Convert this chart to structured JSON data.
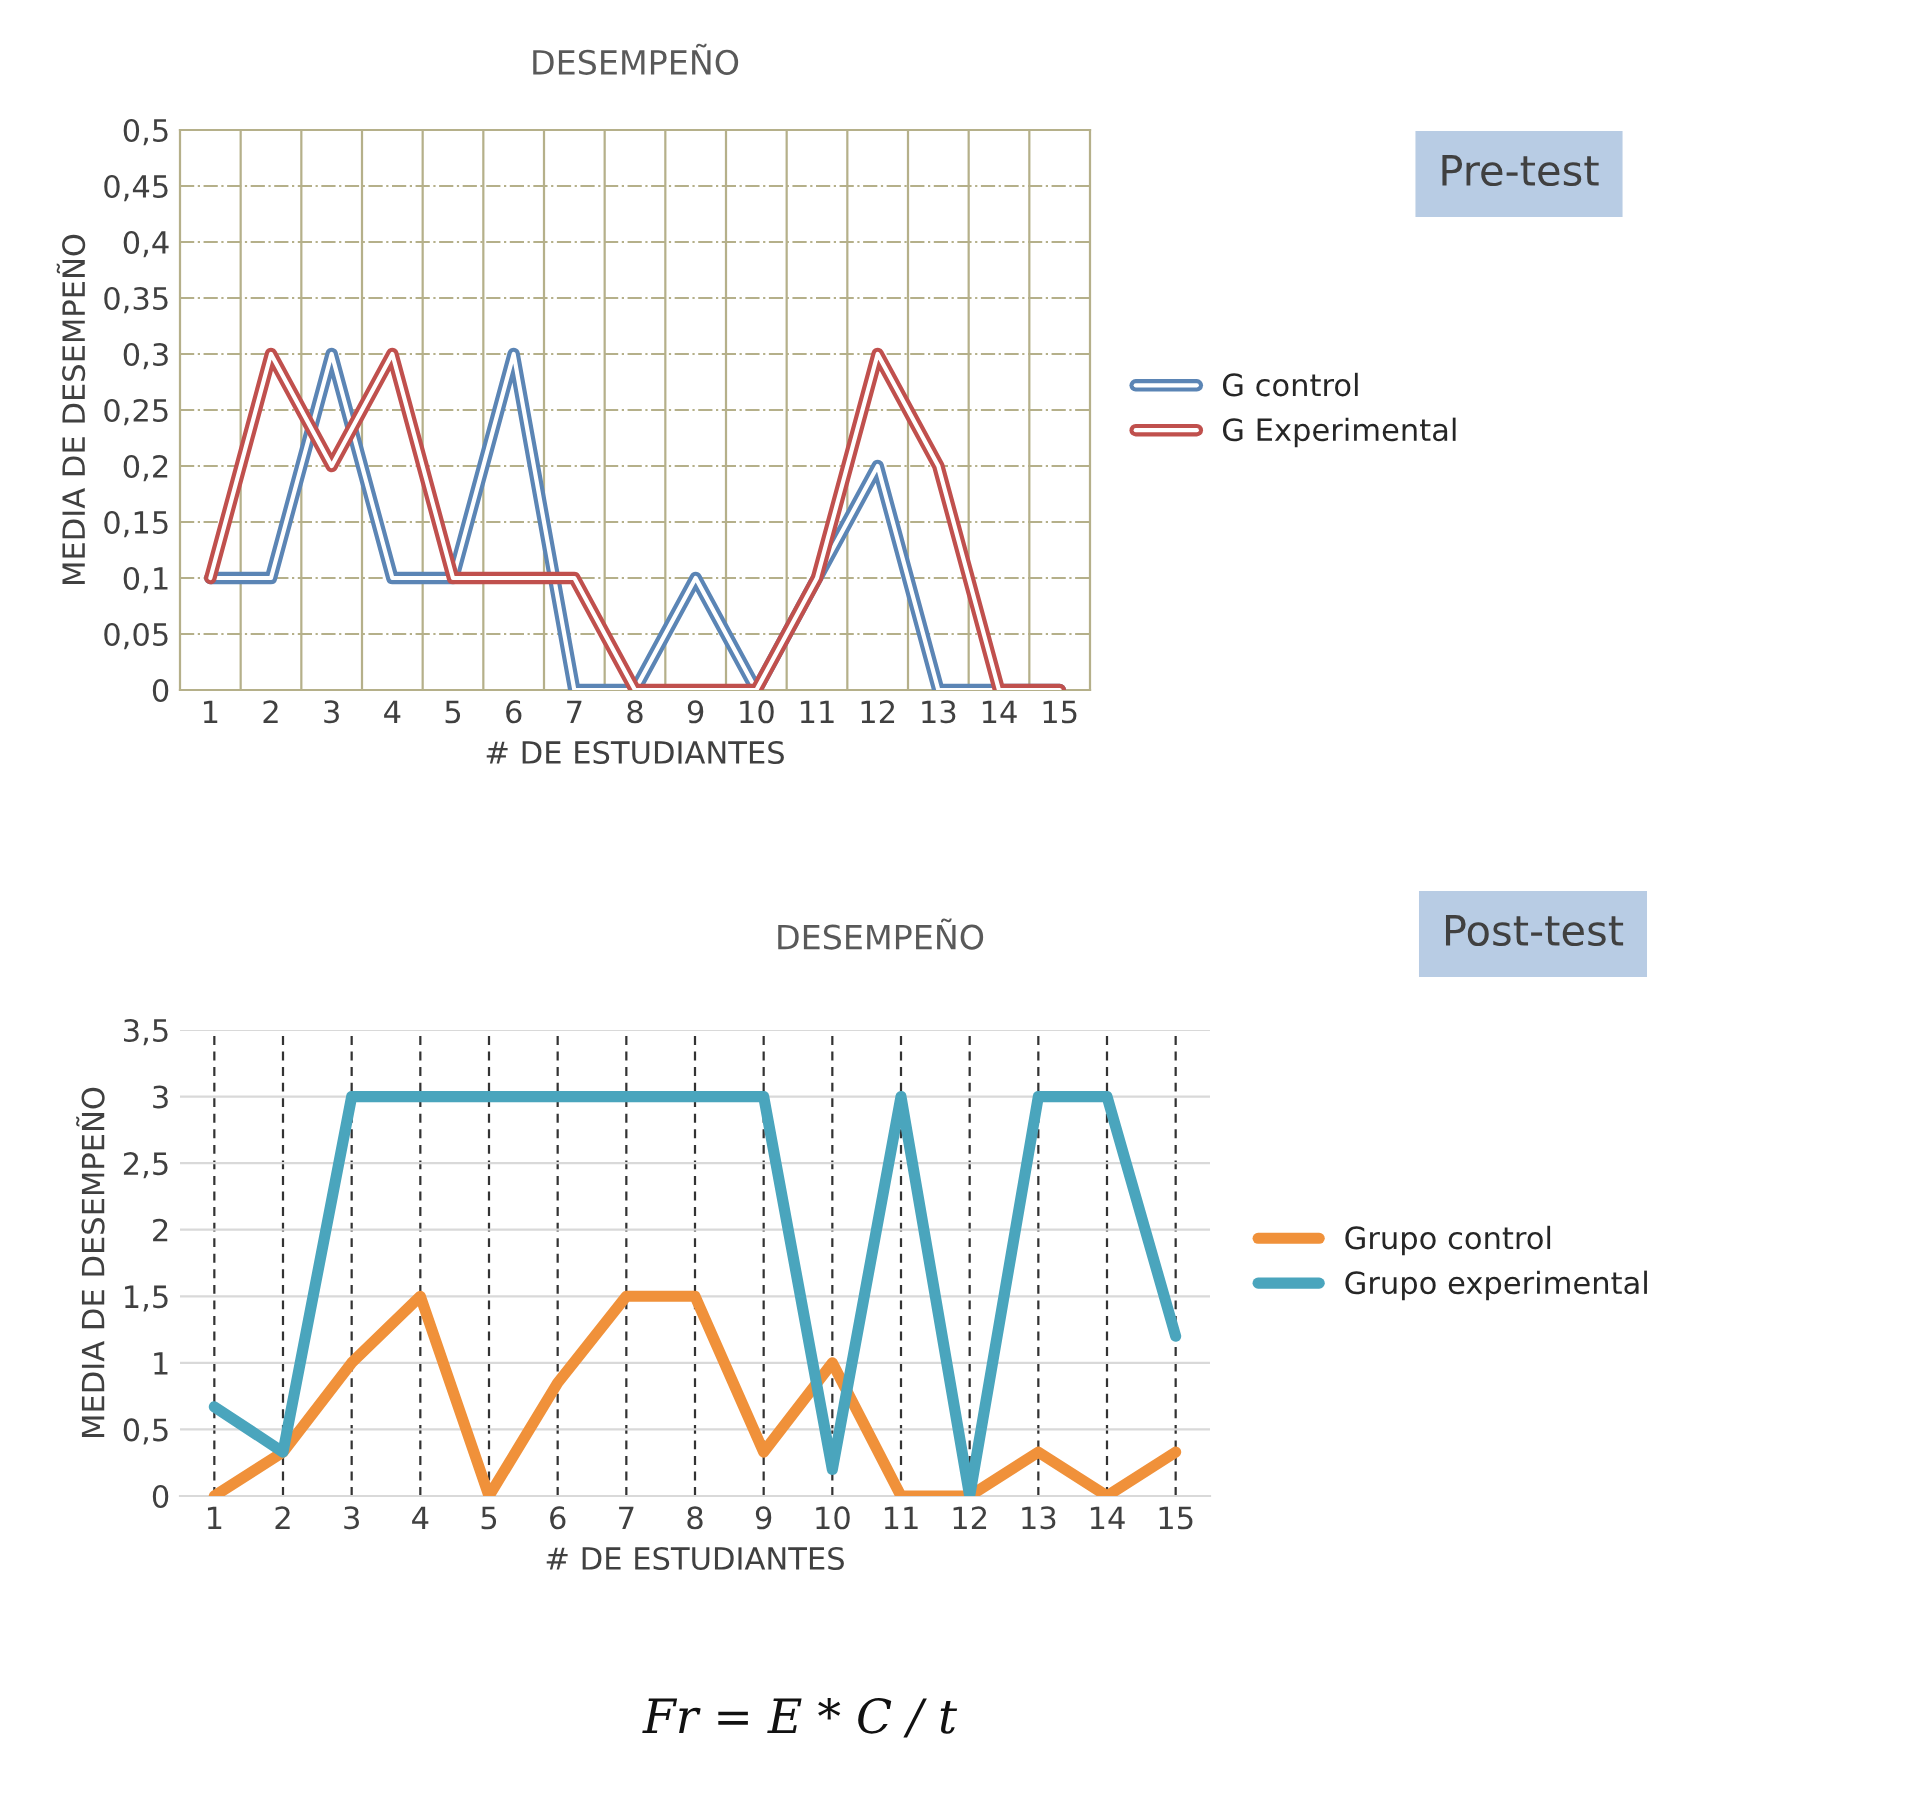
{
  "chart_data": [
    {
      "type": "line",
      "title": "DESEMPEÑO",
      "xlabel": "# DE ESTUDIANTES",
      "ylabel": "MEDIA DE DESEMPEÑO",
      "categories": [
        "1",
        "2",
        "3",
        "4",
        "5",
        "6",
        "7",
        "8",
        "9",
        "10",
        "11",
        "12",
        "13",
        "14",
        "15"
      ],
      "series": [
        {
          "name": "G control",
          "color": "#5b85b5",
          "values": [
            0.1,
            0.1,
            0.3,
            0.1,
            0.1,
            0.3,
            0,
            0,
            0.1,
            0,
            0.1,
            0.2,
            0,
            0,
            0
          ]
        },
        {
          "name": "G Experimental",
          "color": "#c0504d",
          "values": [
            0.1,
            0.3,
            0.2,
            0.3,
            0.1,
            0.1,
            0.1,
            0,
            0,
            0,
            0.1,
            0.3,
            0.2,
            0,
            0
          ]
        }
      ],
      "ylim": [
        0,
        0.5
      ],
      "yticks": [
        0,
        {
          "value": 0.05,
          "label": "0,05"
        },
        {
          "value": 0.1,
          "label": "0,1"
        },
        {
          "value": 0.15,
          "label": "0,15"
        },
        {
          "value": 0.2,
          "label": "0,2"
        },
        {
          "value": 0.25,
          "label": "0,25"
        },
        {
          "value": 0.3,
          "label": "0,3"
        },
        {
          "value": 0.35,
          "label": "0,35"
        },
        {
          "value": 0.4,
          "label": "0,4"
        },
        {
          "value": 0.45,
          "label": "0,45"
        },
        {
          "value": 0.5,
          "label": "0,5"
        }
      ],
      "grid": true,
      "legend": "right",
      "line_style": "solid",
      "marker": "none",
      "annotations": [
        "Pre-test"
      ]
    },
    {
      "type": "line",
      "title": "DESEMPEÑO",
      "xlabel": "# DE ESTUDIANTES",
      "ylabel": "MEDIA DE DESEMPEÑO",
      "categories": [
        "1",
        "2",
        "3",
        "4",
        "5",
        "6",
        "7",
        "8",
        "9",
        "10",
        "11",
        "12",
        "13",
        "14",
        "15"
      ],
      "series": [
        {
          "name": "Grupo control",
          "color": "#f0913a",
          "values": [
            0,
            0.33,
            1,
            1.5,
            0,
            0.85,
            1.5,
            1.5,
            0.33,
            1,
            0,
            0,
            0.33,
            0,
            0.33
          ]
        },
        {
          "name": "Grupo experimental",
          "color": "#4aa5bd",
          "values": [
            0.67,
            0.33,
            3,
            3,
            3,
            3,
            3,
            3,
            3,
            0.2,
            3,
            0,
            3,
            3,
            1.2
          ]
        }
      ],
      "ylim": [
        0,
        3.5
      ],
      "yticks": [
        0,
        {
          "value": 0.5,
          "label": "0,5"
        },
        1,
        {
          "value": 1.5,
          "label": "1,5"
        },
        2,
        {
          "value": 2.5,
          "label": "2,5"
        },
        3,
        {
          "value": 3.5,
          "label": "3,5"
        }
      ],
      "grid": true,
      "legend": "right",
      "line_style": "solid",
      "marker": "none",
      "annotations": [
        "Post-test",
        "Fr = E * C / t"
      ]
    }
  ]
}
